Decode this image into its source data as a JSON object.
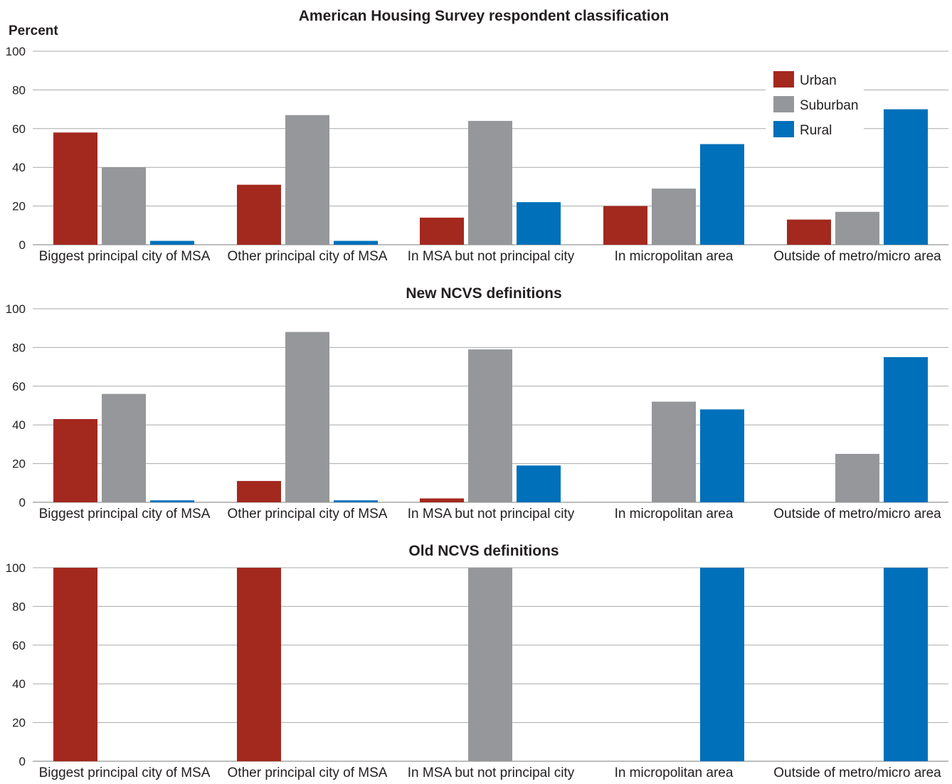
{
  "chart_data": {
    "type": "bar",
    "ylabel": "Percent",
    "ylim": [
      0,
      100
    ],
    "yticks": [
      "0",
      "20",
      "40",
      "60",
      "80",
      "100"
    ],
    "grid": true,
    "legend": {
      "placement": "top-right",
      "entries": [
        {
          "name": "Urban",
          "color": "#a3281e"
        },
        {
          "name": "Suburban",
          "color": "#96979a"
        },
        {
          "name": "Rural",
          "color": "#0070ba"
        }
      ]
    },
    "categories": [
      "Biggest principal city of MSA",
      "Other principal city of MSA",
      "In MSA but not principal city",
      "In micropolitan area",
      "Outside of metro/micro area"
    ],
    "panels": [
      {
        "title": "American Housing Survey respondent classification",
        "series": [
          {
            "name": "Urban",
            "values": [
              58,
              31,
              14,
              20,
              13
            ]
          },
          {
            "name": "Suburban",
            "values": [
              40,
              67,
              64,
              29,
              17
            ]
          },
          {
            "name": "Rural",
            "values": [
              2,
              2,
              22,
              52,
              70
            ]
          }
        ]
      },
      {
        "title": "New NCVS definitions",
        "series": [
          {
            "name": "Urban",
            "values": [
              43,
              11,
              2,
              0,
              0
            ]
          },
          {
            "name": "Suburban",
            "values": [
              56,
              88,
              79,
              52,
              25
            ]
          },
          {
            "name": "Rural",
            "values": [
              1,
              1,
              19,
              48,
              75
            ]
          }
        ]
      },
      {
        "title": "Old NCVS definitions",
        "series": [
          {
            "name": "Urban",
            "values": [
              100,
              100,
              0,
              0,
              0
            ]
          },
          {
            "name": "Suburban",
            "values": [
              0,
              0,
              100,
              0,
              0
            ]
          },
          {
            "name": "Rural",
            "values": [
              0,
              0,
              0,
              100,
              100
            ]
          }
        ]
      }
    ]
  }
}
